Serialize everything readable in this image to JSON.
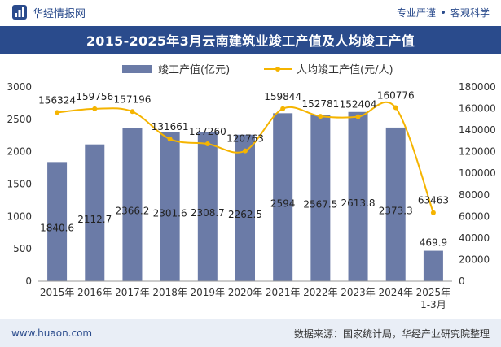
{
  "header": {
    "brand_name": "华经情报网",
    "slogan_left": "专业严谨",
    "slogan_right": "客观科学"
  },
  "footer": {
    "website": "www.huaon.com",
    "source": "数据来源：国家统计局，华经产业研究院整理"
  },
  "colors": {
    "brand": "#2a4b8c",
    "bar": "#6b7ba7",
    "line": "#f5b400"
  },
  "chart_data": {
    "type": "bar",
    "title": "2015-2025年3月云南建筑业竣工产值及人均竣工产值",
    "categories": [
      "2015年",
      "2016年",
      "2017年",
      "2018年",
      "2019年",
      "2020年",
      "2021年",
      "2022年",
      "2023年",
      "2024年",
      "2025年\n1-3月"
    ],
    "series": [
      {
        "name": "竣工产值(亿元)",
        "kind": "bar",
        "axis": "left",
        "values": [
          1840.6,
          2112.7,
          2366.2,
          2301.6,
          2308.7,
          2262.5,
          2594,
          2567.5,
          2613.8,
          2373.3,
          469.9
        ],
        "labels": [
          "1840.6",
          "2112.7",
          "2366.2",
          "2301.6",
          "2308.7",
          "2262.5",
          "2594",
          "2567.5",
          "2613.8",
          "2373.3",
          "469.9"
        ]
      },
      {
        "name": "人均竣工产值(元/人)",
        "kind": "line",
        "axis": "right",
        "values": [
          156324,
          159756,
          157196,
          131661,
          127260,
          120763,
          159844,
          152781,
          152404,
          160776,
          63463
        ],
        "labels": [
          "156324",
          "159756",
          "157196",
          "131661",
          "127260",
          "120763",
          "159844",
          "152781",
          "152404",
          "160776",
          "63463"
        ]
      }
    ],
    "y_left": {
      "min": 0,
      "max": 3000,
      "ticks": [
        "0",
        "500",
        "1000",
        "1500",
        "2000",
        "2500",
        "3000"
      ]
    },
    "y_right": {
      "min": 0,
      "max": 180000,
      "ticks": [
        "0",
        "20000",
        "40000",
        "60000",
        "80000",
        "100000",
        "120000",
        "140000",
        "160000",
        "180000"
      ]
    },
    "grid": false,
    "legend_position": "top-center"
  }
}
